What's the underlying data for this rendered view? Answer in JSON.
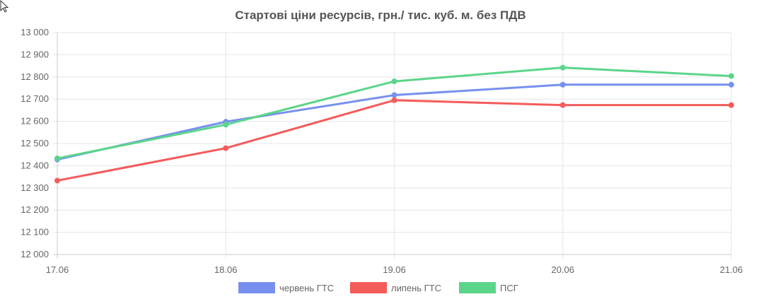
{
  "chart_data": {
    "type": "line",
    "title": "Стартові ціни ресурсів, грн./ тис. куб. м. без ПДВ",
    "xlabel": "",
    "ylabel": "",
    "categories": [
      "17.06",
      "18.06",
      "19.06",
      "20.06",
      "21.06"
    ],
    "ylim": [
      12000,
      13000
    ],
    "yticks": [
      12000,
      12100,
      12200,
      12300,
      12400,
      12500,
      12600,
      12700,
      12800,
      12900,
      13000
    ],
    "ytick_labels": [
      "12 000",
      "12 100",
      "12 200",
      "12 300",
      "12 400",
      "12 500",
      "12 600",
      "12 700",
      "12 800",
      "12 900",
      "13 000"
    ],
    "grid": true,
    "legend_position": "bottom",
    "series": [
      {
        "name": "червень ГТС",
        "color": "#7790f0",
        "values": [
          12428,
          12598,
          12718,
          12765,
          12765
        ]
      },
      {
        "name": "липень ГТС",
        "color": "#f45b5b",
        "values": [
          12333,
          12479,
          12695,
          12673,
          12673
        ]
      },
      {
        "name": "ПСГ",
        "color": "#5bd58a",
        "values": [
          12433,
          12585,
          12780,
          12842,
          12804
        ]
      }
    ]
  }
}
